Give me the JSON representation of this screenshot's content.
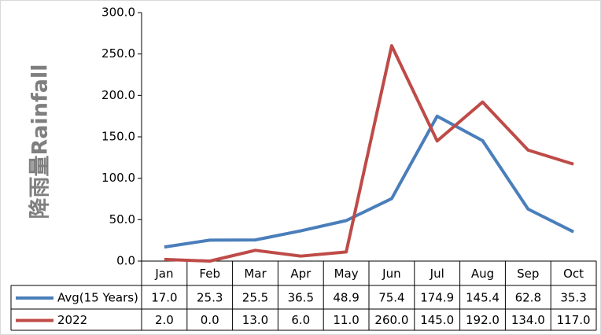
{
  "chart_data": {
    "type": "line",
    "y_label": "降雨量Rainfall",
    "categories": [
      "Jan",
      "Feb",
      "Mar",
      "Apr",
      "May",
      "Jun",
      "Jul",
      "Aug",
      "Sep",
      "Oct"
    ],
    "series": [
      {
        "name": "Avg(15 Years)",
        "color": "#4a7ebb",
        "values": [
          17.0,
          25.3,
          25.5,
          36.5,
          48.9,
          75.4,
          174.9,
          145.4,
          62.8,
          35.3
        ],
        "value_labels": [
          "17.0",
          "25.3",
          "25.5",
          "36.5",
          "48.9",
          "75.4",
          "174.9",
          "145.4",
          "62.8",
          "35.3"
        ]
      },
      {
        "name": "2022",
        "color": "#be4b48",
        "values": [
          2.0,
          0.0,
          13.0,
          6.0,
          11.0,
          260.0,
          145.0,
          192.0,
          134.0,
          117.0
        ],
        "value_labels": [
          "2.0",
          "0.0",
          "13.0",
          "6.0",
          "11.0",
          "260.0",
          "145.0",
          "192.0",
          "134.0",
          "117.0"
        ]
      }
    ],
    "ylim": [
      0,
      300
    ],
    "yticks": [
      {
        "value": 0,
        "label": "0.0"
      },
      {
        "value": 50,
        "label": "50.0"
      },
      {
        "value": 100,
        "label": "100.0"
      },
      {
        "value": 150,
        "label": "150.0"
      },
      {
        "value": 200,
        "label": "200.0"
      },
      {
        "value": 250,
        "label": "250.0"
      },
      {
        "value": 300,
        "label": "300.0"
      }
    ],
    "grid": false,
    "data_table": true
  }
}
